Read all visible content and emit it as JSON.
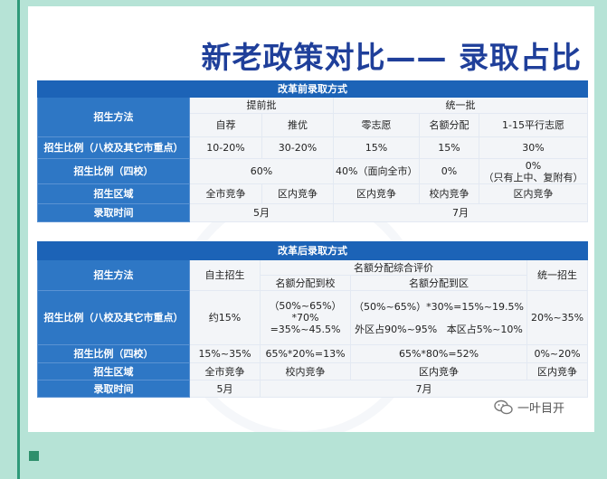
{
  "title": "新老政策对比—— 录取占比",
  "old": {
    "band": "改革前录取方式",
    "method_label": "招生方法",
    "group_early": "提前批",
    "group_unified": "统一批",
    "cols": [
      "自荐",
      "推优",
      "零志愿",
      "名额分配",
      "1-15平行志愿"
    ],
    "ratio_key_label": "招生比例（八校及其它市重点）",
    "ratio_key": [
      "10-20%",
      "30-20%",
      "15%",
      "15%",
      "30%"
    ],
    "ratio_four_label": "招生比例（四校）",
    "ratio_four_a": "60%",
    "ratio_four_b": "40%（面向全市）",
    "ratio_four_c": "0%",
    "ratio_four_d1": "0%",
    "ratio_four_d2": "（只有上中、复附有）",
    "area_label": "招生区域",
    "area": [
      "全市竞争",
      "区内竞争",
      "区内竞争",
      "校内竞争",
      "区内竞争"
    ],
    "time_label": "录取时间",
    "time_a": "5月",
    "time_b": "7月"
  },
  "new": {
    "band": "改革后录取方式",
    "method_label": "招生方法",
    "self": "自主招生",
    "quota_group": "名额分配综合评价",
    "unified": "统一招生",
    "to_school": "名额分配到校",
    "to_district": "名额分配到区",
    "ratio_key_label": "招生比例（八校及其它市重点）",
    "ratio_self": "约15%",
    "school_l1": "（50%~65%）",
    "school_l2": "*70%",
    "school_l3": "=35%~45.5%",
    "district_l1": "（50%~65%）*30%=15%~19.5%",
    "district_l2": "外区占90%~95%   本区占5%~10%",
    "ratio_unified": "20%~35%",
    "ratio_four_label": "招生比例（四校）",
    "four": [
      "15%~35%",
      "65%*20%=13%",
      "65%*80%=52%",
      "0%~20%"
    ],
    "area_label": "招生区域",
    "area": [
      "全市竞争",
      "校内竞争",
      "区内竞争",
      "区内竞争"
    ],
    "time_label": "录取时间",
    "time_a": "5月",
    "time_b": "7月"
  },
  "footer": {
    "account": "一叶目开",
    "icon": "wechat-icon"
  },
  "colors": {
    "band": "#1c63b7",
    "row_header": "#2e77c5",
    "title": "#1f3f9a",
    "background": "#b6e3d6"
  }
}
